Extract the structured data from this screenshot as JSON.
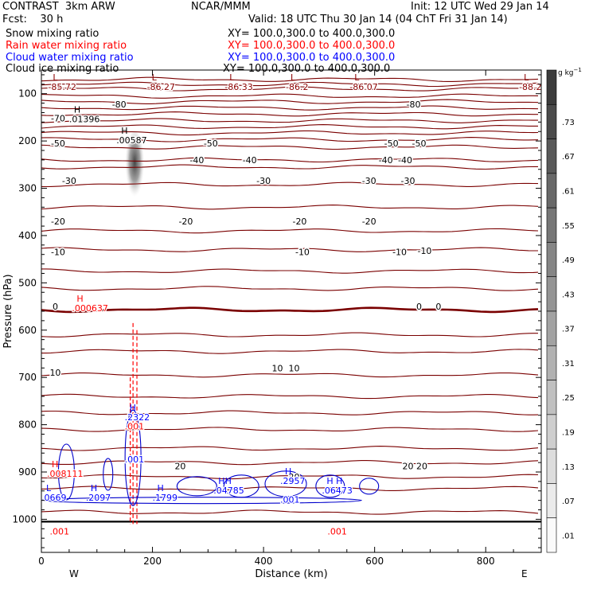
{
  "header": {
    "model": "CONTRAST  3km ARW",
    "org": "NCAR/MMM",
    "init": "Init: 12 UTC Wed 29 Jan 14",
    "fcst": "Fcst:    30 h",
    "valid": "Valid: 18 UTC Thu 30 Jan 14 (04 ChT Fri 31 Jan 14)",
    "fields": [
      {
        "name": "Snow mixing ratio",
        "xy": "XY= 100.0,300.0 to 400.0,300.0",
        "color": "#000000"
      },
      {
        "name": "Rain water mixing ratio",
        "xy": "XY= 100.0,300.0 to 400.0,300.0",
        "color": "#ff0000"
      },
      {
        "name": "Cloud water mixing ratio",
        "xy": "XY= 100.0,300.0 to 400.0,300.0",
        "color": "#0000ff"
      },
      {
        "name": "Cloud ice mixing ratio",
        "xy": "XY= 100.0,300.0 to 400.0,300.0",
        "color": "#000000"
      }
    ]
  },
  "chart_data": {
    "type": "contour",
    "xlabel": "Distance (km)",
    "ylabel": "Pressure (hPa)",
    "xlim": [
      0,
      900
    ],
    "ylim": [
      1070,
      50
    ],
    "xticks": [
      0,
      200,
      400,
      600,
      800
    ],
    "yticks": [
      100,
      200,
      300,
      400,
      500,
      600,
      700,
      800,
      900,
      1000
    ],
    "x_end_labels": {
      "left": "W",
      "right": "E"
    },
    "colorbar": {
      "unit": "g kg",
      "unit_exp": "−1",
      "levels": [
        "",
        ".73",
        ".67",
        ".61",
        ".55",
        ".49",
        ".43",
        ".37",
        ".31",
        ".25",
        ".19",
        ".13",
        ".07",
        ".01"
      ]
    },
    "temperature_contours": [
      {
        "p": 70,
        "label": ""
      },
      {
        "p": 80,
        "label": ""
      },
      {
        "p": 90,
        "label": ""
      },
      {
        "p": 105,
        "label": ""
      },
      {
        "p": 117,
        "label": ""
      },
      {
        "p": 130,
        "label": "-80"
      },
      {
        "p": 143,
        "label": "-70"
      },
      {
        "p": 157,
        "label": ""
      },
      {
        "p": 170,
        "label": ""
      },
      {
        "p": 183,
        "label": ""
      },
      {
        "p": 197,
        "label": "-60"
      },
      {
        "p": 213,
        "label": "-50"
      },
      {
        "p": 240,
        "label": ""
      },
      {
        "p": 255,
        "label": "-40"
      },
      {
        "p": 292,
        "label": "-30"
      },
      {
        "p": 340,
        "label": "-20"
      },
      {
        "p": 390,
        "label": ""
      },
      {
        "p": 430,
        "label": "-10"
      },
      {
        "p": 475,
        "label": ""
      },
      {
        "p": 512,
        "label": ""
      },
      {
        "p": 557,
        "label": "0",
        "bold": true
      },
      {
        "p": 610,
        "label": ""
      },
      {
        "p": 645,
        "label": ""
      },
      {
        "p": 695,
        "label": "10"
      },
      {
        "p": 740,
        "label": ""
      },
      {
        "p": 775,
        "label": ""
      },
      {
        "p": 810,
        "label": ""
      },
      {
        "p": 850,
        "label": ""
      },
      {
        "p": 880,
        "label": ""
      },
      {
        "p": 910,
        "label": "20"
      },
      {
        "p": 935,
        "label": ""
      },
      {
        "p": 985,
        "label": ""
      }
    ],
    "contour_labels": [
      {
        "x": 140,
        "p": 122,
        "text": "-80"
      },
      {
        "x": 670,
        "p": 122,
        "text": "-80"
      },
      {
        "x": 30,
        "p": 152,
        "text": "-70"
      },
      {
        "x": 30,
        "p": 205,
        "text": "-50"
      },
      {
        "x": 305,
        "p": 205,
        "text": "-50"
      },
      {
        "x": 630,
        "p": 205,
        "text": "-50"
      },
      {
        "x": 680,
        "p": 205,
        "text": "-50"
      },
      {
        "x": 280,
        "p": 240,
        "text": "-40"
      },
      {
        "x": 375,
        "p": 240,
        "text": "-40"
      },
      {
        "x": 620,
        "p": 240,
        "text": "-40"
      },
      {
        "x": 655,
        "p": 240,
        "text": "-40"
      },
      {
        "x": 50,
        "p": 284,
        "text": "-30"
      },
      {
        "x": 400,
        "p": 284,
        "text": "-30"
      },
      {
        "x": 590,
        "p": 284,
        "text": "-30"
      },
      {
        "x": 660,
        "p": 284,
        "text": "-30"
      },
      {
        "x": 30,
        "p": 370,
        "text": "-20"
      },
      {
        "x": 260,
        "p": 370,
        "text": "-20"
      },
      {
        "x": 465,
        "p": 370,
        "text": "-20"
      },
      {
        "x": 590,
        "p": 370,
        "text": "-20"
      },
      {
        "x": 30,
        "p": 435,
        "text": "-10"
      },
      {
        "x": 470,
        "p": 435,
        "text": "-10"
      },
      {
        "x": 645,
        "p": 435,
        "text": "-10"
      },
      {
        "x": 690,
        "p": 432,
        "text": "-10"
      },
      {
        "x": 25,
        "p": 550,
        "text": "0"
      },
      {
        "x": 680,
        "p": 550,
        "text": "0"
      },
      {
        "x": 715,
        "p": 550,
        "text": "0"
      },
      {
        "x": 25,
        "p": 690,
        "text": "10"
      },
      {
        "x": 425,
        "p": 680,
        "text": "10"
      },
      {
        "x": 455,
        "p": 680,
        "text": "10"
      },
      {
        "x": 250,
        "p": 887,
        "text": "20"
      },
      {
        "x": 660,
        "p": 887,
        "text": "20"
      },
      {
        "x": 685,
        "p": 887,
        "text": "20"
      },
      {
        "x": 455,
        "p": 910,
        "text": "20"
      }
    ],
    "extrema": [
      {
        "x": 12,
        "p": 72,
        "mark": "L",
        "value": "-85.72",
        "color": "#8b0000"
      },
      {
        "x": 190,
        "p": 72,
        "mark": "L",
        "value": "-86.27",
        "color": "#8b0000"
      },
      {
        "x": 330,
        "p": 72,
        "mark": "L",
        "value": "-86.33",
        "color": "#8b0000"
      },
      {
        "x": 440,
        "p": 72,
        "mark": "L",
        "value": "-86.2",
        "color": "#8b0000"
      },
      {
        "x": 555,
        "p": 72,
        "mark": "L",
        "value": "-86.07",
        "color": "#8b0000"
      },
      {
        "x": 860,
        "p": 72,
        "mark": "L",
        "value": "-88.2",
        "color": "#8b0000"
      },
      {
        "x": 50,
        "p": 140,
        "mark": "H",
        "value": ".01396",
        "color": "#000000"
      },
      {
        "x": 135,
        "p": 185,
        "mark": "H",
        "value": ".00587",
        "color": "#000000"
      },
      {
        "x": 55,
        "p": 540,
        "mark": "H",
        "value": ".000637",
        "color": "#ff0000"
      },
      {
        "x": 10,
        "p": 890,
        "mark": "H",
        "value": ".008111",
        "color": "#ff0000"
      },
      {
        "x": 150,
        "p": 770,
        "mark": "H",
        "value": ".2322",
        "color": "#0000ff"
      },
      {
        "x": 150,
        "p": 790,
        "mark": "",
        "value": ".001",
        "color": "#ff0000"
      },
      {
        "x": 150,
        "p": 860,
        "mark": "",
        "value": ".001",
        "color": "#0000ff"
      },
      {
        "x": 0,
        "p": 940,
        "mark": "L",
        "value": ".0669",
        "color": "#0000ff"
      },
      {
        "x": 80,
        "p": 940,
        "mark": "H",
        "value": ".2097",
        "color": "#0000ff"
      },
      {
        "x": 200,
        "p": 940,
        "mark": "H",
        "value": ".1799",
        "color": "#0000ff"
      },
      {
        "x": 310,
        "p": 925,
        "mark": "HH",
        "value": ".04785",
        "color": "#0000ff"
      },
      {
        "x": 430,
        "p": 905,
        "mark": "H",
        "value": ".2957",
        "color": "#0000ff"
      },
      {
        "x": 430,
        "p": 945,
        "mark": "",
        "value": ".001",
        "color": "#0000ff"
      },
      {
        "x": 505,
        "p": 925,
        "mark": "H H",
        "value": ".06473",
        "color": "#0000ff"
      },
      {
        "x": 15,
        "p": 1012,
        "mark": "",
        "value": ".001",
        "color": "#ff0000"
      },
      {
        "x": 515,
        "p": 1012,
        "mark": "",
        "value": ".001",
        "color": "#ff0000"
      }
    ],
    "snow_plume": {
      "x_center": 168,
      "p_top": 180,
      "p_bottom": 325,
      "color": "#555555"
    },
    "surface_p": 1005
  }
}
